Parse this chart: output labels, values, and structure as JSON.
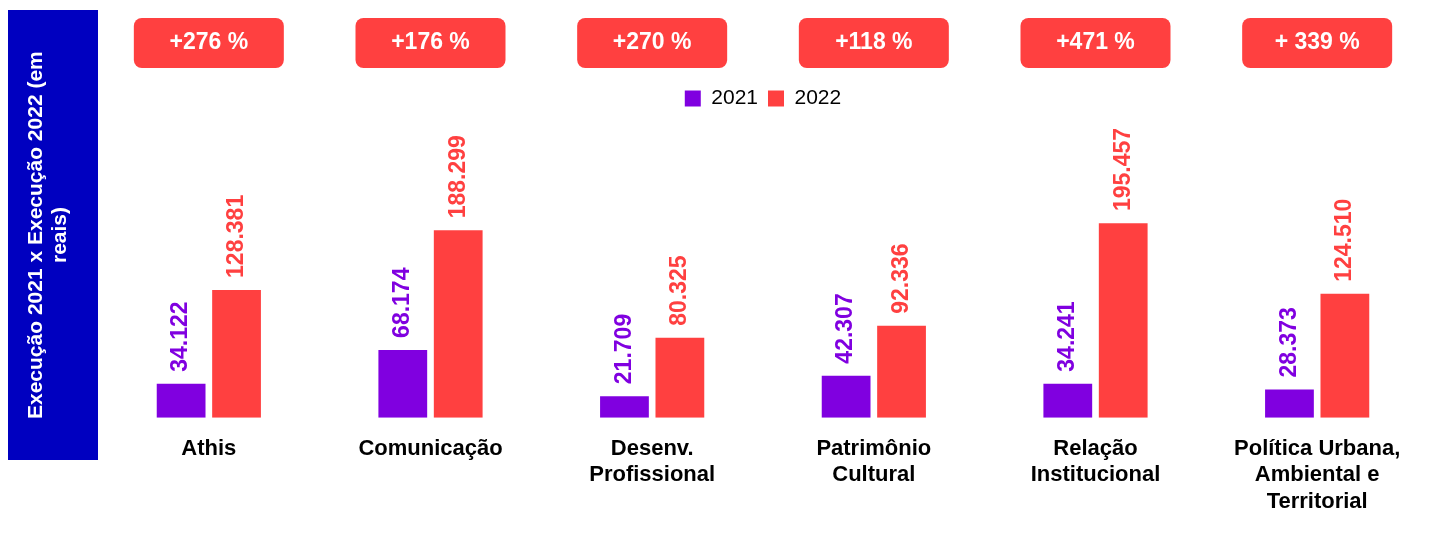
{
  "chart_data": {
    "type": "bar",
    "ylabel": "Execução 2021 x Execução 2022 (em reais)",
    "categories": [
      "Athis",
      "Comunicação",
      "Desenv. Profissional",
      "Patrimônio Cultural",
      "Relação Institucional",
      "Política Urbana, Ambiental e Territorial"
    ],
    "series": [
      {
        "name": "2021",
        "color": "#8000e0",
        "values": [
          34122,
          68174,
          21709,
          42307,
          34241,
          28373
        ],
        "value_labels": [
          "34.122",
          "68.174",
          "21.709",
          "42.307",
          "34.241",
          "28.373"
        ]
      },
      {
        "name": "2022",
        "color": "#ff4040",
        "values": [
          128381,
          188299,
          80325,
          92336,
          195457,
          124510
        ],
        "value_labels": [
          "128.381",
          "188.299",
          "80.325",
          "92.336",
          "195.457",
          "124.510"
        ]
      }
    ],
    "annotations": [
      "+276 %",
      "+176 %",
      "+270 %",
      "+118 %",
      "+471 %",
      "+ 339 %"
    ],
    "tick_labels": "x",
    "grid": false,
    "legend": "top"
  }
}
